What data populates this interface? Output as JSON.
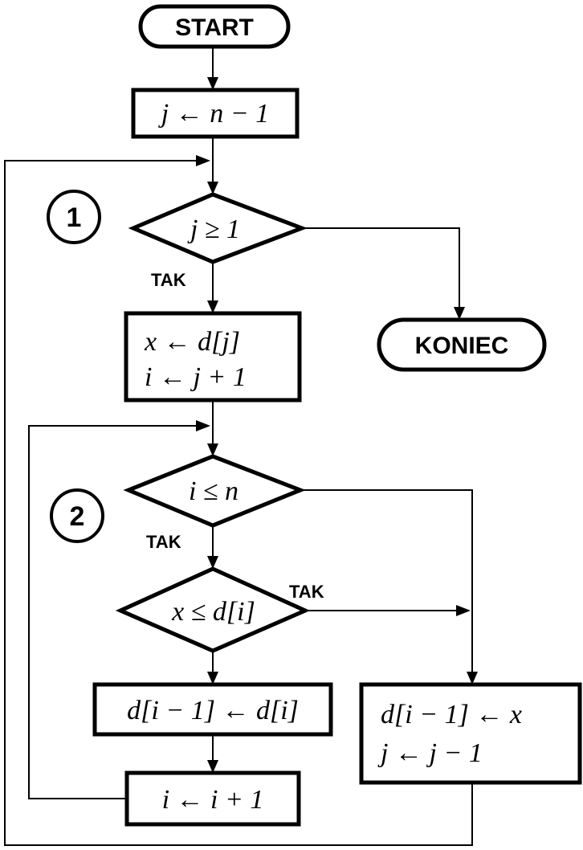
{
  "terminals": {
    "start": "START",
    "end": "KONIEC"
  },
  "processes": {
    "init": "j ← n − 1",
    "load_line1": "x ← d[j]",
    "load_line2": "i ← j + 1",
    "shift": "d[i − 1] ← d[i]",
    "increment": "i ← i + 1",
    "insert_line1": "d[i − 1] ← x",
    "insert_line2": "j ← j − 1"
  },
  "decisions": {
    "outer": "j ≥ 1",
    "inner": "i ≤ n",
    "compare": "x ≤ d[i]"
  },
  "branch_labels": {
    "outer_yes": "TAK",
    "inner_yes": "TAK",
    "compare_yes": "TAK"
  },
  "loop_markers": {
    "outer": "1",
    "inner": "2"
  }
}
